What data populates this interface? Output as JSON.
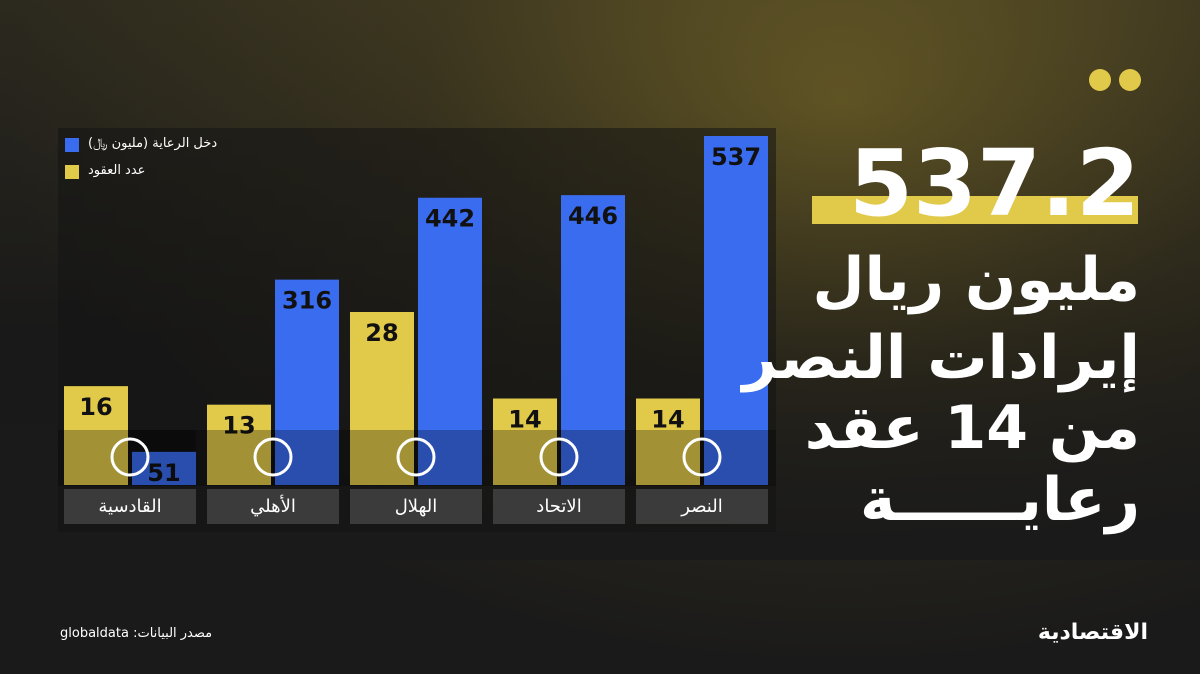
{
  "header": {
    "headline_value": "537.2",
    "headline_lines": [
      "مليون ريال",
      "إيرادات النصر",
      "من 14 عقد",
      "رعايــــــة"
    ]
  },
  "chart_data": {
    "type": "bar",
    "categories": [
      "القادسية",
      "الأهلي",
      "الهلال",
      "الاتحاد",
      "النصر"
    ],
    "series": [
      {
        "name": "عدد العقود",
        "color": "#e1c94a",
        "values": [
          16,
          13,
          28,
          14,
          14
        ]
      },
      {
        "name": "دخل الرعاية (مليون ﷼)",
        "color": "#3a6cf0",
        "values": [
          51,
          316,
          442,
          446,
          537
        ]
      }
    ]
  },
  "footer": {
    "source": "مصدر البيانات: globaldata",
    "brand": "الاقتصادية"
  }
}
